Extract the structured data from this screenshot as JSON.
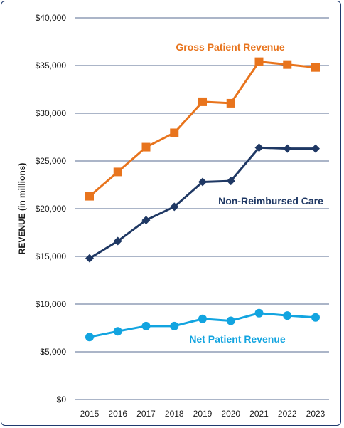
{
  "chart_data": {
    "type": "line",
    "title": "",
    "xlabel": "",
    "ylabel": "REVENUE (in millions)",
    "x": [
      "2015",
      "2016",
      "2017",
      "2018",
      "2019",
      "2020",
      "2021",
      "2022",
      "2023"
    ],
    "ylim": [
      0,
      40000
    ],
    "yticks": [
      "$0",
      "$5,000",
      "$10,000",
      "$15,000",
      "$20,000",
      "$25,000",
      "$30,000",
      "$35,000",
      "$40,000"
    ],
    "ytick_values": [
      0,
      5000,
      10000,
      15000,
      20000,
      25000,
      30000,
      35000,
      40000
    ],
    "grid": true,
    "series": [
      {
        "name": "Gross Patient Revenue",
        "color": "#e8741d",
        "marker": "square",
        "values": [
          21300,
          23850,
          26450,
          27950,
          31200,
          31050,
          35400,
          35100,
          34800
        ]
      },
      {
        "name": "Non-Reimbursed Care",
        "color": "#1f3864",
        "marker": "diamond",
        "values": [
          14800,
          16600,
          18800,
          20200,
          22800,
          22900,
          26400,
          26300,
          26300
        ]
      },
      {
        "name": "Net Patient Revenue",
        "color": "#12a4e0",
        "marker": "circle",
        "values": [
          6550,
          7150,
          7700,
          7700,
          8450,
          8250,
          9050,
          8800,
          8600
        ]
      }
    ]
  }
}
